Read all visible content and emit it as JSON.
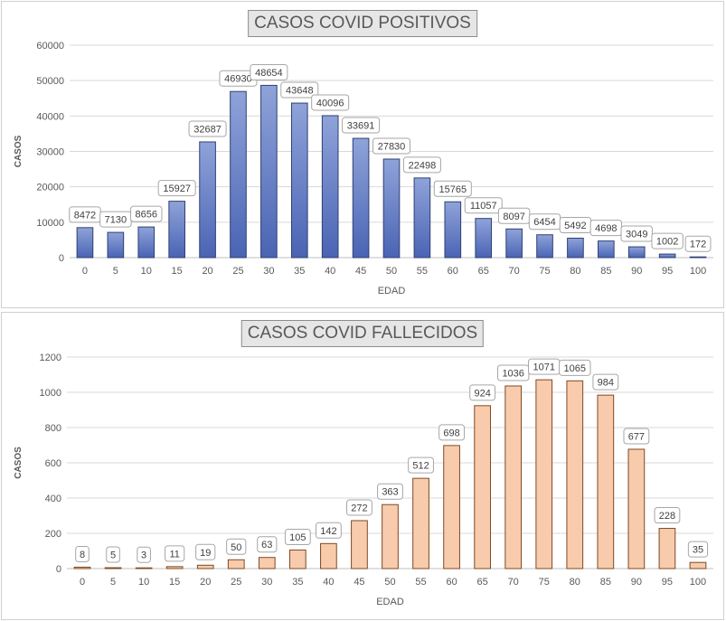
{
  "chart_data": [
    {
      "type": "bar",
      "title": "CASOS COVID POSITIVOS",
      "xlabel": "EDAD",
      "ylabel": "CASOS",
      "categories": [
        "0",
        "5",
        "10",
        "15",
        "20",
        "25",
        "30",
        "35",
        "40",
        "45",
        "50",
        "55",
        "60",
        "65",
        "70",
        "75",
        "80",
        "85",
        "90",
        "95",
        "100"
      ],
      "values": [
        8472,
        7130,
        8656,
        15927,
        32687,
        46930,
        48654,
        43648,
        40096,
        33691,
        27830,
        22498,
        15765,
        11057,
        8097,
        6454,
        5492,
        4698,
        3049,
        1002,
        172
      ],
      "ylim": [
        0,
        60000
      ],
      "yticks": [
        "0",
        "10000",
        "20000",
        "30000",
        "40000",
        "50000",
        "60000"
      ],
      "grid": true,
      "bar_color": "#8fa3d9",
      "bar_color_dark": "#4a64b4",
      "bar_border": "#2f3f73"
    },
    {
      "type": "bar",
      "title": "CASOS COVID FALLECIDOS",
      "xlabel": "EDAD",
      "ylabel": "CASOS",
      "categories": [
        "0",
        "5",
        "10",
        "15",
        "20",
        "25",
        "30",
        "35",
        "40",
        "45",
        "50",
        "55",
        "60",
        "65",
        "70",
        "75",
        "80",
        "85",
        "90",
        "95",
        "100"
      ],
      "values": [
        8,
        5,
        3,
        11,
        19,
        50,
        63,
        105,
        142,
        272,
        363,
        512,
        698,
        924,
        1036,
        1071,
        1065,
        984,
        677,
        228,
        35
      ],
      "ylim": [
        0,
        1200
      ],
      "yticks": [
        "0",
        "200",
        "400",
        "600",
        "800",
        "1000",
        "1200"
      ],
      "grid": true,
      "bar_color": "#f8cbad",
      "bar_border": "#7f4a1f"
    }
  ]
}
